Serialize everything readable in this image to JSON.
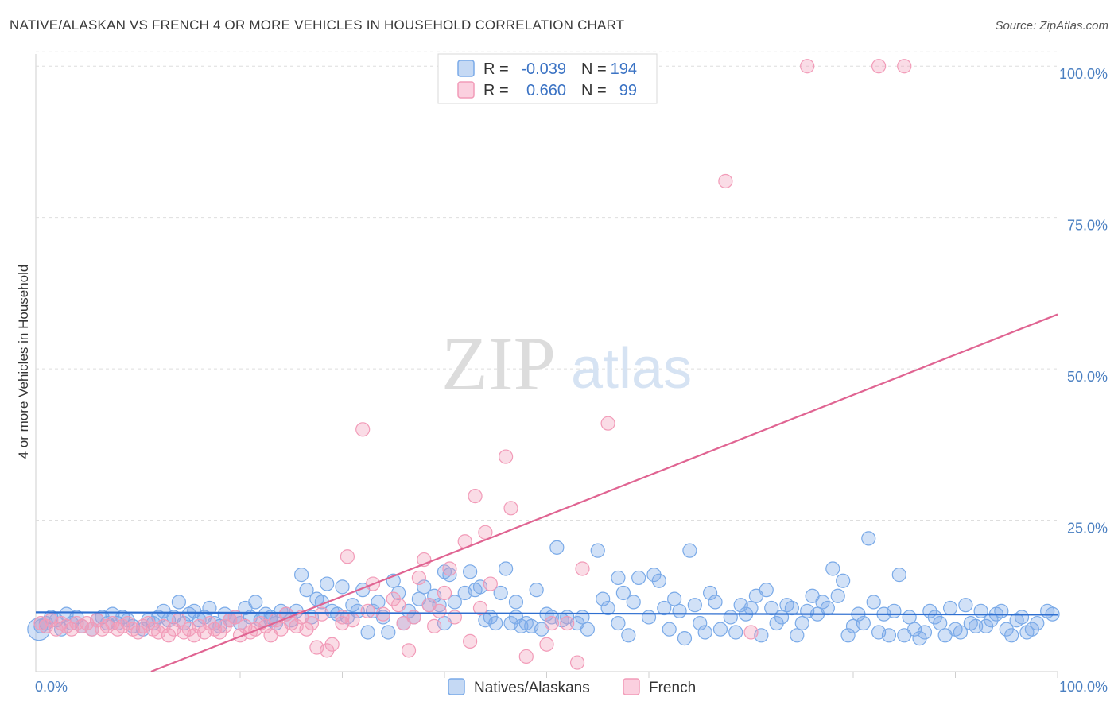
{
  "header": {
    "title": "NATIVE/ALASKAN VS FRENCH 4 OR MORE VEHICLES IN HOUSEHOLD CORRELATION CHART",
    "source": "Source: ZipAtlas.com"
  },
  "watermark": {
    "zip": "ZIP",
    "atlas": "atlas"
  },
  "legend": {
    "rows": [
      {
        "r_label": "R =",
        "r_value": "-0.039",
        "n_label": "N =",
        "n_value": "194",
        "color": "#7aaae8"
      },
      {
        "r_label": "R =",
        "r_value": "0.660",
        "n_label": "N =",
        "n_value": "99",
        "color": "#f29bb8"
      }
    ]
  },
  "bottom_legend": {
    "items": [
      {
        "label": "Natives/Alaskans",
        "color": "#7aaae8"
      },
      {
        "label": "French",
        "color": "#f29bb8"
      }
    ]
  },
  "chart_data": {
    "type": "scatter",
    "title": "NATIVE/ALASKAN VS FRENCH 4 OR MORE VEHICLES IN HOUSEHOLD CORRELATION CHART",
    "xlabel": "",
    "ylabel": "4 or more Vehicles in Household",
    "xlim": [
      0,
      100
    ],
    "ylim": [
      0,
      102
    ],
    "x_tick_labels": [
      "0.0%",
      "100.0%"
    ],
    "y_tick_values": [
      25,
      50,
      75,
      100
    ],
    "y_tick_labels": [
      "25.0%",
      "50.0%",
      "75.0%",
      "100.0%"
    ],
    "grid": true,
    "series": [
      {
        "name": "Natives/Alaskans",
        "color": "#7aaae8",
        "line_color": "#2f6fd0",
        "trend": {
          "x": [
            0,
            100
          ],
          "y": [
            9.8,
            9.4
          ]
        },
        "points": [
          [
            0.5,
            7.5
          ],
          [
            1.0,
            8.0
          ],
          [
            1.5,
            9.0
          ],
          [
            2.0,
            8.5
          ],
          [
            2.5,
            7.0
          ],
          [
            3.0,
            9.5
          ],
          [
            3.5,
            8.0
          ],
          [
            4.0,
            9.0
          ],
          [
            4.5,
            7.5
          ],
          [
            5.5,
            7.0
          ],
          [
            6.0,
            8.5
          ],
          [
            6.5,
            9.0
          ],
          [
            7.0,
            8.0
          ],
          [
            7.5,
            9.5
          ],
          [
            8.0,
            8.0
          ],
          [
            8.5,
            9.0
          ],
          [
            9.0,
            8.5
          ],
          [
            9.5,
            7.5
          ],
          [
            10.5,
            7.0
          ],
          [
            11.0,
            8.5
          ],
          [
            11.5,
            8.0
          ],
          [
            12.0,
            9.0
          ],
          [
            12.5,
            10.0
          ],
          [
            13.0,
            8.5
          ],
          [
            13.5,
            9.0
          ],
          [
            14.0,
            11.5
          ],
          [
            14.5,
            8.0
          ],
          [
            15.0,
            9.5
          ],
          [
            15.5,
            10.0
          ],
          [
            16.0,
            8.5
          ],
          [
            16.5,
            9.0
          ],
          [
            17.0,
            10.5
          ],
          [
            17.5,
            8.0
          ],
          [
            18.0,
            7.5
          ],
          [
            18.5,
            9.5
          ],
          [
            19.0,
            8.5
          ],
          [
            19.5,
            9.0
          ],
          [
            20.0,
            8.0
          ],
          [
            20.5,
            10.5
          ],
          [
            21.0,
            9.0
          ],
          [
            21.5,
            11.5
          ],
          [
            22.0,
            8.5
          ],
          [
            22.5,
            9.5
          ],
          [
            23.0,
            9.0
          ],
          [
            23.5,
            8.0
          ],
          [
            24.0,
            10.0
          ],
          [
            24.5,
            9.5
          ],
          [
            25.0,
            8.5
          ],
          [
            25.5,
            10.0
          ],
          [
            26.0,
            16.0
          ],
          [
            26.5,
            13.5
          ],
          [
            27.0,
            9.0
          ],
          [
            27.5,
            12.0
          ],
          [
            28.0,
            11.5
          ],
          [
            28.5,
            14.5
          ],
          [
            29.0,
            10.0
          ],
          [
            29.5,
            9.5
          ],
          [
            30.0,
            14.0
          ],
          [
            30.5,
            9.0
          ],
          [
            31.0,
            11.0
          ],
          [
            31.5,
            10.0
          ],
          [
            32.0,
            13.5
          ],
          [
            32.5,
            6.5
          ],
          [
            33.0,
            10.0
          ],
          [
            33.5,
            11.5
          ],
          [
            34.0,
            9.0
          ],
          [
            34.5,
            6.5
          ],
          [
            35.0,
            15.0
          ],
          [
            35.5,
            13.0
          ],
          [
            36.0,
            8.0
          ],
          [
            36.5,
            10.0
          ],
          [
            37.0,
            9.0
          ],
          [
            37.5,
            12.0
          ],
          [
            38.0,
            14.0
          ],
          [
            38.5,
            11.0
          ],
          [
            39.0,
            12.5
          ],
          [
            39.5,
            11.0
          ],
          [
            40.0,
            16.5
          ],
          [
            40.5,
            16.0
          ],
          [
            41.0,
            11.5
          ],
          [
            42.0,
            13.0
          ],
          [
            42.5,
            16.5
          ],
          [
            43.0,
            13.5
          ],
          [
            43.5,
            14.0
          ],
          [
            44.0,
            8.5
          ],
          [
            44.5,
            9.0
          ],
          [
            45.0,
            8.0
          ],
          [
            45.5,
            13.0
          ],
          [
            46.0,
            17.0
          ],
          [
            46.5,
            8.0
          ],
          [
            47.0,
            9.0
          ],
          [
            47.5,
            7.5
          ],
          [
            48.0,
            8.0
          ],
          [
            48.5,
            7.5
          ],
          [
            49.0,
            13.5
          ],
          [
            49.5,
            7.0
          ],
          [
            50.0,
            9.5
          ],
          [
            50.5,
            9.0
          ],
          [
            51.0,
            20.5
          ],
          [
            51.5,
            8.5
          ],
          [
            52.0,
            9.0
          ],
          [
            53.0,
            8.0
          ],
          [
            53.5,
            9.0
          ],
          [
            54.0,
            7.0
          ],
          [
            55.0,
            20.0
          ],
          [
            55.5,
            12.0
          ],
          [
            56.0,
            10.5
          ],
          [
            57.0,
            15.5
          ],
          [
            57.5,
            13.0
          ],
          [
            58.0,
            6.0
          ],
          [
            58.5,
            11.5
          ],
          [
            59.0,
            15.5
          ],
          [
            60.0,
            9.0
          ],
          [
            60.5,
            16.0
          ],
          [
            61.0,
            15.0
          ],
          [
            61.5,
            10.5
          ],
          [
            62.0,
            7.0
          ],
          [
            62.5,
            12.0
          ],
          [
            63.0,
            10.0
          ],
          [
            63.5,
            5.5
          ],
          [
            64.0,
            20.0
          ],
          [
            64.5,
            11.0
          ],
          [
            65.0,
            8.0
          ],
          [
            65.5,
            6.5
          ],
          [
            66.0,
            13.0
          ],
          [
            66.5,
            11.5
          ],
          [
            67.0,
            7.0
          ],
          [
            68.0,
            9.0
          ],
          [
            68.5,
            6.5
          ],
          [
            69.0,
            11.0
          ],
          [
            69.5,
            9.5
          ],
          [
            70.0,
            10.5
          ],
          [
            70.5,
            12.5
          ],
          [
            71.0,
            6.0
          ],
          [
            71.5,
            13.5
          ],
          [
            72.0,
            10.5
          ],
          [
            72.5,
            8.0
          ],
          [
            73.0,
            9.0
          ],
          [
            73.5,
            11.0
          ],
          [
            74.0,
            10.5
          ],
          [
            74.5,
            6.0
          ],
          [
            75.0,
            8.0
          ],
          [
            75.5,
            10.0
          ],
          [
            76.0,
            12.5
          ],
          [
            76.5,
            9.5
          ],
          [
            77.0,
            11.5
          ],
          [
            77.5,
            10.5
          ],
          [
            78.0,
            17.0
          ],
          [
            78.5,
            12.5
          ],
          [
            79.0,
            15.0
          ],
          [
            79.5,
            6.0
          ],
          [
            80.0,
            7.5
          ],
          [
            80.5,
            9.5
          ],
          [
            81.0,
            8.0
          ],
          [
            81.5,
            22.0
          ],
          [
            82.0,
            11.5
          ],
          [
            82.5,
            6.5
          ],
          [
            83.0,
            9.5
          ],
          [
            83.5,
            6.0
          ],
          [
            84.0,
            10.0
          ],
          [
            84.5,
            16.0
          ],
          [
            85.0,
            6.0
          ],
          [
            85.5,
            9.0
          ],
          [
            86.0,
            7.0
          ],
          [
            86.5,
            5.5
          ],
          [
            87.0,
            6.5
          ],
          [
            87.5,
            10.0
          ],
          [
            88.0,
            9.0
          ],
          [
            88.5,
            8.0
          ],
          [
            89.0,
            6.0
          ],
          [
            89.5,
            10.5
          ],
          [
            90.0,
            7.0
          ],
          [
            90.5,
            6.5
          ],
          [
            91.0,
            11.0
          ],
          [
            91.5,
            8.0
          ],
          [
            92.0,
            7.5
          ],
          [
            92.5,
            10.0
          ],
          [
            93.0,
            7.5
          ],
          [
            93.5,
            8.5
          ],
          [
            94.0,
            9.5
          ],
          [
            94.5,
            10.0
          ],
          [
            95.0,
            7.0
          ],
          [
            95.5,
            6.0
          ],
          [
            96.0,
            8.5
          ],
          [
            96.5,
            9.0
          ],
          [
            97.0,
            6.5
          ],
          [
            97.5,
            7.0
          ],
          [
            98.0,
            8.0
          ],
          [
            99.0,
            10.0
          ],
          [
            99.5,
            9.5
          ],
          [
            23.0,
            8.5
          ],
          [
            40.0,
            8.0
          ],
          [
            47.0,
            11.5
          ],
          [
            57.0,
            8.0
          ]
        ]
      },
      {
        "name": "French",
        "color": "#f29bb8",
        "line_color": "#e06492",
        "trend": {
          "x": [
            0,
            100
          ],
          "y": [
            -7.5,
            59.0
          ]
        },
        "points": [
          [
            0.5,
            8.0
          ],
          [
            1.0,
            7.5
          ],
          [
            1.5,
            8.5
          ],
          [
            2.0,
            7.0
          ],
          [
            2.5,
            8.0
          ],
          [
            3.0,
            7.5
          ],
          [
            3.5,
            7.0
          ],
          [
            4.0,
            8.0
          ],
          [
            4.5,
            7.5
          ],
          [
            5.0,
            8.0
          ],
          [
            5.5,
            7.0
          ],
          [
            6.0,
            8.5
          ],
          [
            6.5,
            7.0
          ],
          [
            7.0,
            7.5
          ],
          [
            7.5,
            8.0
          ],
          [
            8.0,
            7.0
          ],
          [
            8.5,
            7.5
          ],
          [
            9.0,
            8.0
          ],
          [
            9.5,
            7.0
          ],
          [
            10.0,
            6.5
          ],
          [
            10.5,
            7.5
          ],
          [
            11.0,
            8.0
          ],
          [
            11.5,
            7.0
          ],
          [
            12.0,
            6.5
          ],
          [
            12.5,
            7.5
          ],
          [
            13.0,
            6.0
          ],
          [
            13.5,
            7.0
          ],
          [
            14.0,
            8.5
          ],
          [
            14.5,
            6.5
          ],
          [
            15.0,
            7.0
          ],
          [
            15.5,
            6.0
          ],
          [
            16.0,
            7.5
          ],
          [
            16.5,
            6.5
          ],
          [
            17.0,
            8.0
          ],
          [
            17.5,
            7.0
          ],
          [
            18.0,
            6.5
          ],
          [
            18.5,
            7.5
          ],
          [
            19.0,
            8.5
          ],
          [
            19.5,
            9.0
          ],
          [
            20.0,
            6.0
          ],
          [
            20.5,
            7.5
          ],
          [
            21.0,
            6.5
          ],
          [
            21.5,
            7.0
          ],
          [
            22.0,
            8.0
          ],
          [
            22.5,
            7.5
          ],
          [
            23.0,
            6.0
          ],
          [
            23.5,
            8.5
          ],
          [
            24.0,
            7.0
          ],
          [
            24.5,
            9.5
          ],
          [
            25.0,
            8.0
          ],
          [
            25.5,
            7.5
          ],
          [
            26.0,
            9.0
          ],
          [
            26.5,
            7.0
          ],
          [
            27.0,
            8.0
          ],
          [
            27.5,
            4.0
          ],
          [
            28.0,
            9.5
          ],
          [
            28.5,
            3.5
          ],
          [
            29.0,
            4.5
          ],
          [
            30.0,
            9.0
          ],
          [
            30.5,
            19.0
          ],
          [
            31.0,
            8.5
          ],
          [
            32.0,
            40.0
          ],
          [
            32.5,
            10.0
          ],
          [
            33.0,
            14.5
          ],
          [
            34.0,
            9.5
          ],
          [
            35.0,
            12.0
          ],
          [
            35.5,
            11.0
          ],
          [
            36.0,
            8.0
          ],
          [
            36.5,
            3.5
          ],
          [
            37.0,
            9.0
          ],
          [
            37.5,
            15.5
          ],
          [
            38.0,
            18.5
          ],
          [
            38.5,
            11.0
          ],
          [
            39.0,
            7.5
          ],
          [
            39.5,
            10.0
          ],
          [
            40.0,
            13.0
          ],
          [
            40.5,
            17.0
          ],
          [
            41.0,
            9.0
          ],
          [
            42.0,
            21.5
          ],
          [
            42.5,
            5.0
          ],
          [
            43.0,
            29.0
          ],
          [
            43.5,
            10.5
          ],
          [
            44.0,
            23.0
          ],
          [
            44.5,
            14.5
          ],
          [
            46.0,
            35.5
          ],
          [
            46.5,
            27.0
          ],
          [
            48.0,
            2.5
          ],
          [
            50.5,
            8.0
          ],
          [
            50.0,
            4.5
          ],
          [
            52.0,
            8.0
          ],
          [
            53.0,
            1.5
          ],
          [
            53.5,
            17.0
          ],
          [
            56.0,
            41.0
          ],
          [
            67.5,
            81.0
          ],
          [
            70.0,
            6.5
          ],
          [
            75.5,
            100.0
          ],
          [
            82.5,
            100.0
          ],
          [
            85.0,
            100.0
          ],
          [
            30.0,
            8.0
          ]
        ]
      }
    ]
  }
}
